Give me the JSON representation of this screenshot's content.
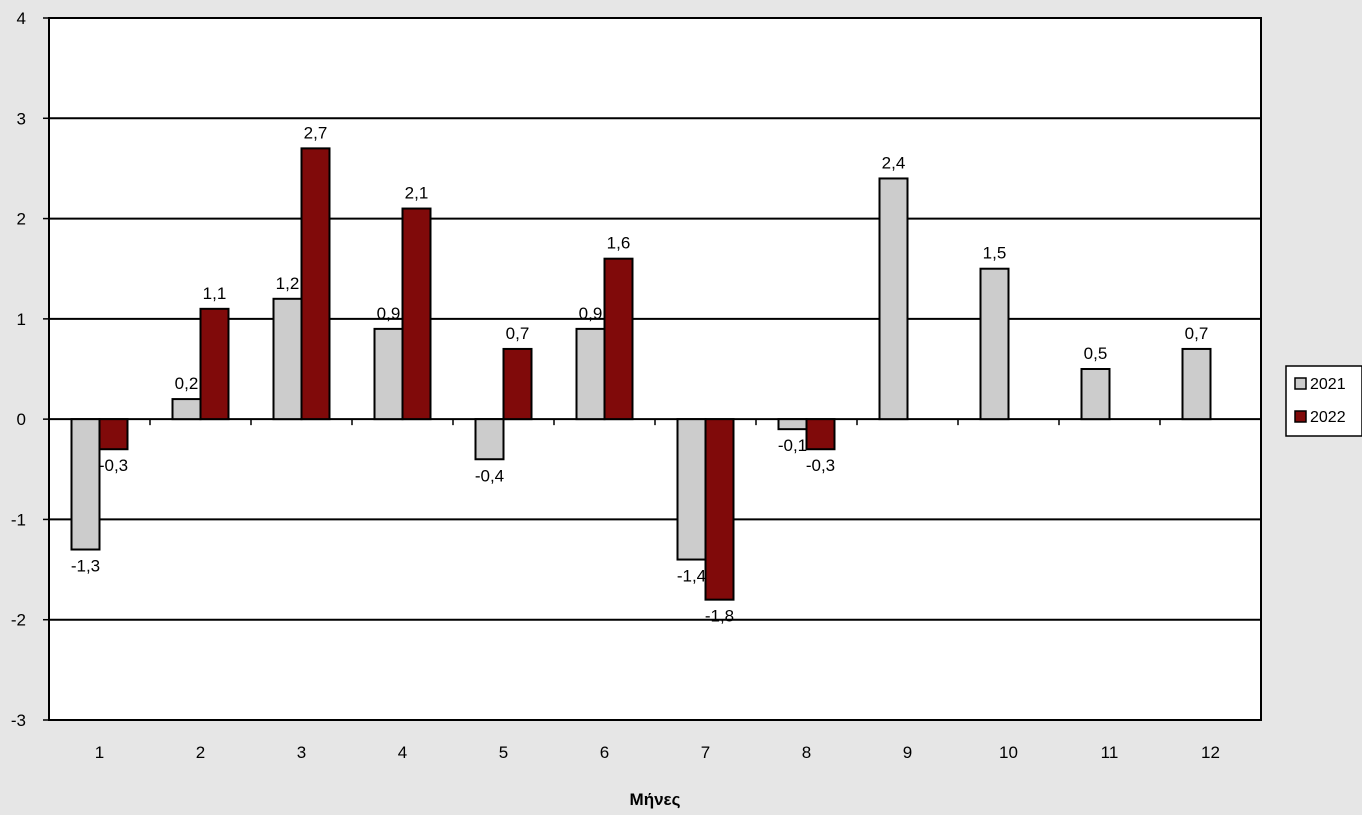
{
  "chart_data": {
    "type": "bar",
    "xlabel": "Μήνες",
    "ylabel": "",
    "ylim": [
      -3,
      4
    ],
    "yticks": [
      -3,
      -2,
      -1,
      0,
      1,
      2,
      3,
      4
    ],
    "grid": true,
    "legend_position": "right",
    "categories": [
      "1",
      "2",
      "3",
      "4",
      "5",
      "6",
      "7",
      "8",
      "9",
      "10",
      "11",
      "12"
    ],
    "series": [
      {
        "name": "2021",
        "color": "#cccccc",
        "values": [
          -1.3,
          0.2,
          1.2,
          0.9,
          -0.4,
          0.9,
          -1.4,
          -0.1,
          2.4,
          1.5,
          0.5,
          0.7
        ],
        "labels": [
          "-1,3",
          "0,2",
          "1,2",
          "0,9",
          "-0,4",
          "0,9",
          "-1,4",
          "-0,1",
          "2,4",
          "1,5",
          "0,5",
          "0,7"
        ]
      },
      {
        "name": "2022",
        "color": "#800a0a",
        "values": [
          -0.3,
          1.1,
          2.7,
          2.1,
          0.7,
          1.6,
          -1.8,
          -0.3,
          null,
          null,
          null,
          null
        ],
        "labels": [
          "-0,3",
          "1,1",
          "2,7",
          "2,1",
          "0,7",
          "1,6",
          "-1,8",
          "-0,3",
          null,
          null,
          null,
          null
        ]
      }
    ]
  }
}
